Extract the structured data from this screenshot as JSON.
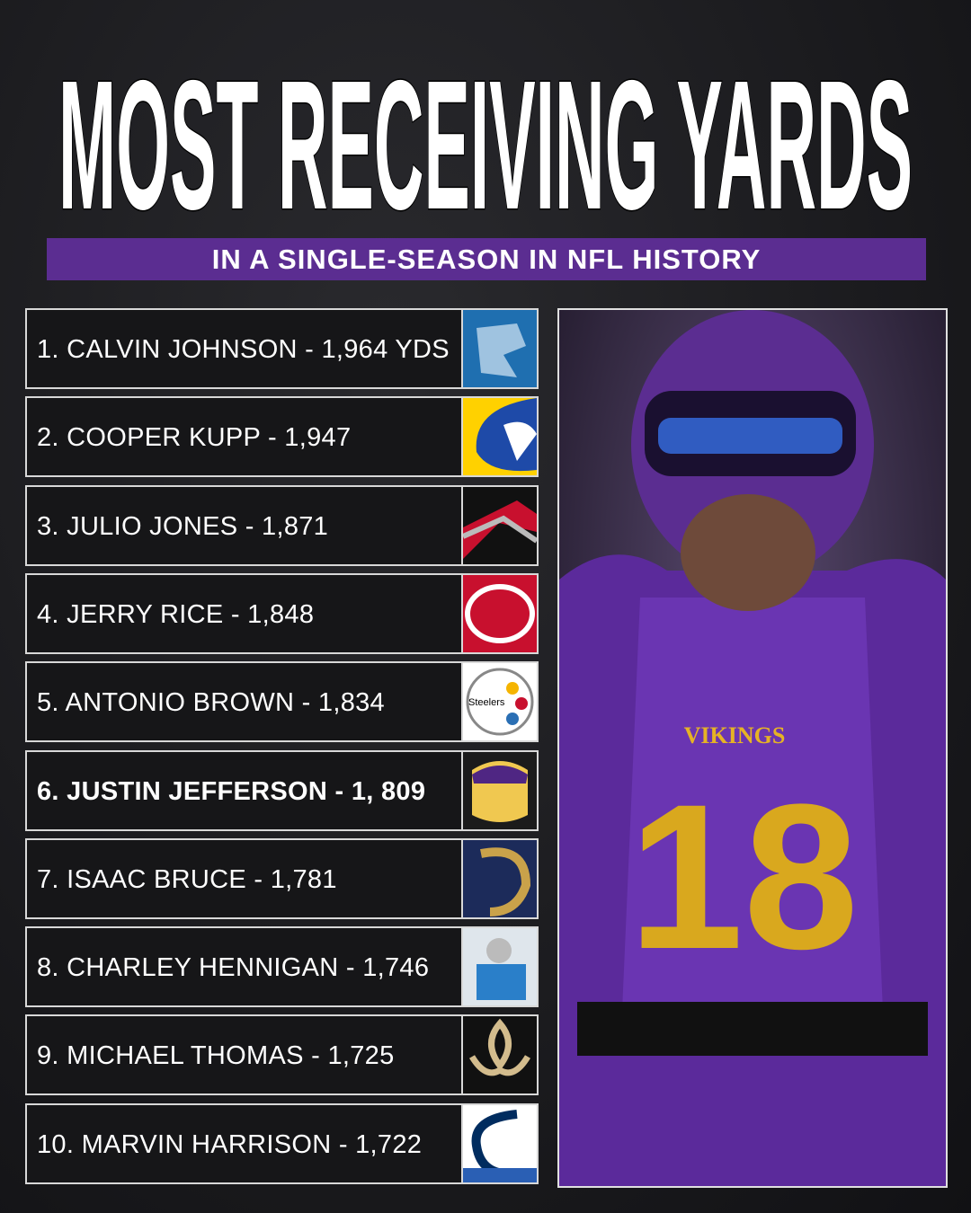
{
  "header": {
    "title": "MOST RECEIVING YARDS",
    "subtitle": "IN A SINGLE-SEASON IN NFL HISTORY"
  },
  "list": {
    "rows": [
      {
        "text": "1. CALVIN JOHNSON - 1,964 YDS"
      },
      {
        "text": "2. COOPER KUPP - 1,947"
      },
      {
        "text": "3. JULIO JONES - 1,871"
      },
      {
        "text": "4. JERRY RICE - 1,848"
      },
      {
        "text": "5. ANTONIO BROWN - 1,834",
        "logo_text": "Steelers"
      },
      {
        "text": "6. JUSTIN JEFFERSON - 1, 809",
        "highlight": true
      },
      {
        "text": "7. ISAAC BRUCE - 1,781"
      },
      {
        "text": "8. CHARLEY HENNIGAN - 1,746"
      },
      {
        "text": "9. MICHAEL THOMAS - 1,725"
      },
      {
        "text": "10. MARVIN HARRISON - 1,722"
      }
    ]
  },
  "photo": {
    "wordmark": "VIKINGS",
    "number": "18"
  }
}
